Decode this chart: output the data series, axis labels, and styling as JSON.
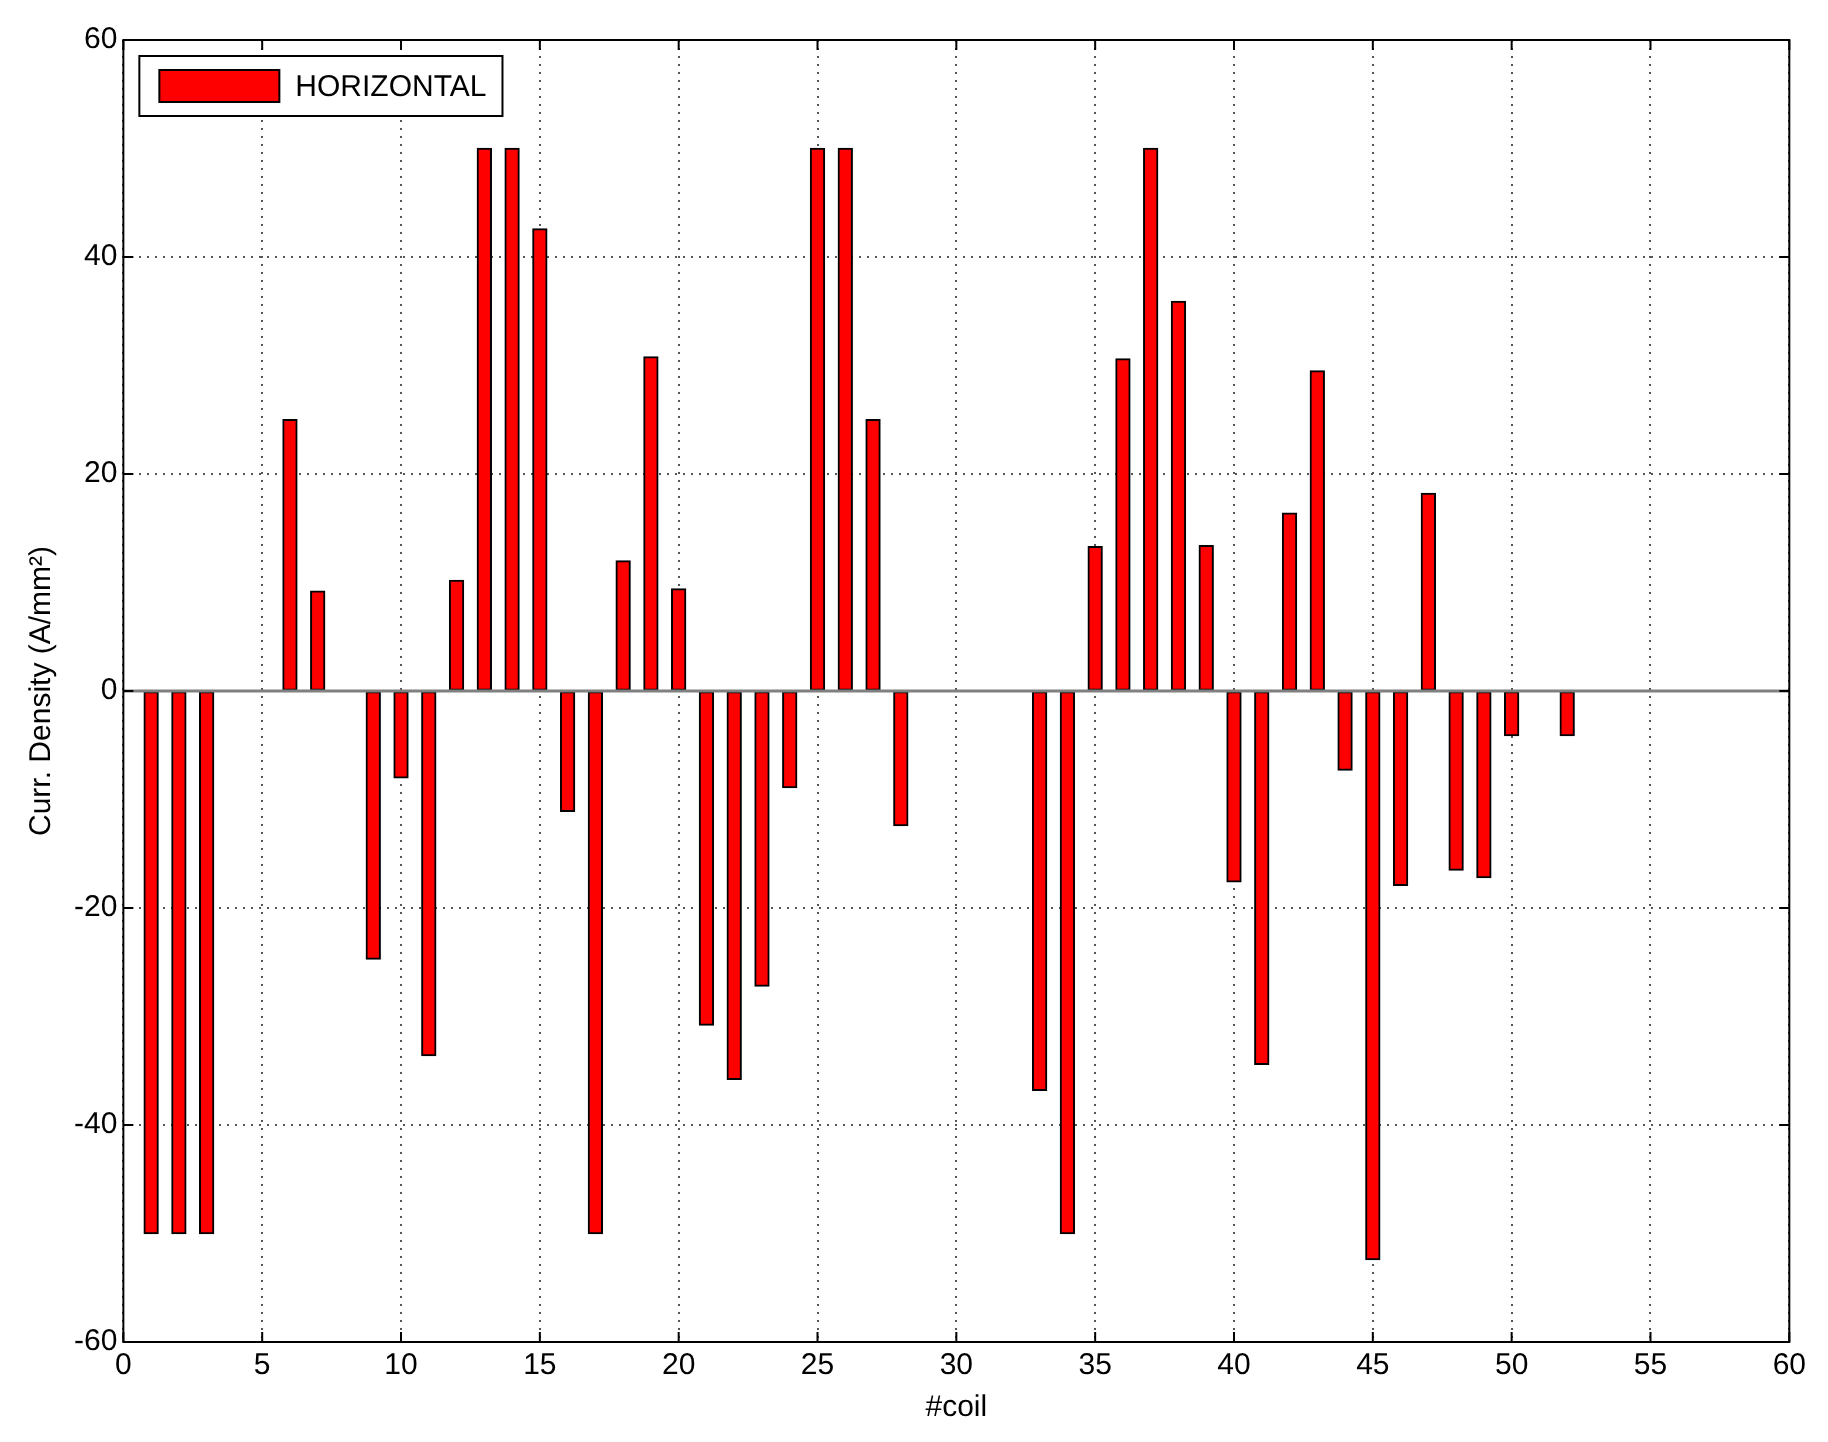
{
  "chart_data": {
    "type": "bar",
    "xlabel": "#coil",
    "ylabel": "Curr. Density (A/mm²)",
    "x": [
      1,
      2,
      3,
      6,
      7,
      9,
      10,
      11,
      12,
      13,
      14,
      15,
      16,
      17,
      18,
      19,
      20,
      21,
      22,
      23,
      24,
      25,
      26,
      27,
      28,
      33,
      34,
      35,
      36,
      37,
      38,
      39,
      40,
      41,
      42,
      43,
      44,
      45,
      46,
      47,
      48,
      49,
      50,
      52
    ],
    "series": [
      {
        "name": "HORIZONTAL",
        "color": "#ff0000",
        "values": [
          -50,
          -50,
          -50,
          25,
          9.2,
          -24.7,
          -8,
          -33.6,
          10.2,
          50,
          50,
          42.6,
          -11.1,
          -50,
          12,
          30.8,
          9.4,
          -30.8,
          -35.8,
          -27.2,
          -8.9,
          50,
          50,
          25,
          -12.4,
          -36.8,
          -50,
          13.3,
          30.6,
          50,
          35.9,
          13.4,
          -17.6,
          -34.4,
          16.4,
          29.5,
          -7.3,
          -52.4,
          -17.9,
          18.2,
          -16.5,
          -17.2,
          -4.1,
          -4.1
        ]
      }
    ],
    "xlim": [
      0,
      60
    ],
    "xticks": [
      0,
      5,
      10,
      15,
      20,
      25,
      30,
      35,
      40,
      45,
      50,
      55,
      60
    ],
    "ylim": [
      -60,
      60
    ],
    "yticks": [
      -60,
      -40,
      -20,
      0,
      20,
      40,
      60
    ],
    "ref_lines": [
      {
        "axis": "y",
        "value": 0,
        "color": "#808080"
      }
    ],
    "grid": true,
    "legend": "top left"
  }
}
